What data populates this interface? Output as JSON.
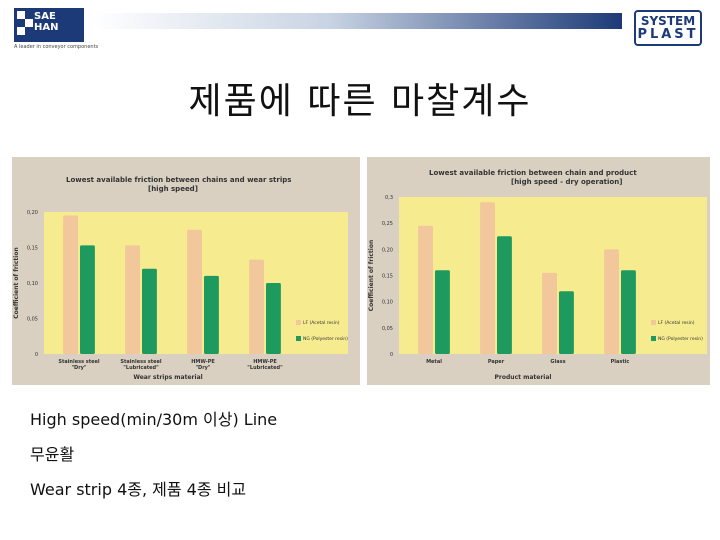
{
  "header": {
    "logo_left": {
      "line1": "SAE",
      "line2": "HAN",
      "tagline": "A leader in conveyor components"
    },
    "logo_right": {
      "line1": "SYSTEM",
      "line2": "PLAST"
    }
  },
  "title": "제품에 따른 마찰계수",
  "colors": {
    "lf": "#f2c79c",
    "ng": "#1e9a5e",
    "plot_bg": "#f6eb8e"
  },
  "chart_data": [
    {
      "type": "bar",
      "title": "Lowest available friction between chains and wear strips",
      "subtitle": "[high speed]",
      "xlabel": "Wear strips material",
      "ylabel": "Coefficient of friction",
      "ylim": [
        0,
        0.2
      ],
      "yticks": [
        "0",
        "0,05",
        "0,10",
        "0,15",
        "0,20"
      ],
      "categories": [
        "Stainless steel\n\"Dry\"",
        "Stainless steel\n\"Lubricated\"",
        "HMW-PE\n\"Dry\"",
        "HMW-PE\n\"Lubricated\""
      ],
      "series": [
        {
          "name": "LF (Acetal resin)",
          "values": [
            0.195,
            0.153,
            0.175,
            0.133
          ]
        },
        {
          "name": "NG (Polyester resin)",
          "values": [
            0.153,
            0.12,
            0.11,
            0.1
          ]
        }
      ],
      "legend": "bottom-right",
      "grid": false
    },
    {
      "type": "bar",
      "title": "Lowest available friction between chain and product",
      "subtitle": "[high speed - dry operation]",
      "xlabel": "Product material",
      "ylabel": "Coefficient of friction",
      "ylim": [
        0,
        0.3
      ],
      "yticks": [
        "0",
        "0,05",
        "0,10",
        "0,15",
        "0,20",
        "0,25",
        "0,3"
      ],
      "categories": [
        "Metal",
        "Paper",
        "Glass",
        "Plastic"
      ],
      "series": [
        {
          "name": "LF (Acetal resin)",
          "values": [
            0.245,
            0.29,
            0.155,
            0.2
          ]
        },
        {
          "name": "NG (Polyester resin)",
          "values": [
            0.16,
            0.225,
            0.12,
            0.16
          ]
        }
      ],
      "legend": "bottom-right",
      "grid": false
    }
  ],
  "description": {
    "line1": "High speed(min/30m 이상) Line",
    "line2": "무윤활",
    "line3": "Wear strip 4종, 제품 4종 비교"
  }
}
